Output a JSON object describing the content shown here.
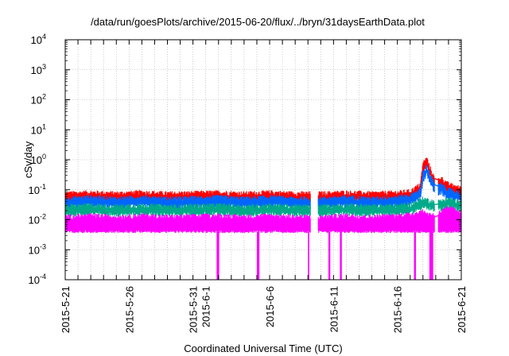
{
  "chart_data": {
    "type": "line",
    "title": "/data/run/goesPlots/archive/2015-06-20/flux/../bryn/31daysEarthData.plot",
    "xlabel": "Coordinated Universal Time (UTC)",
    "ylabel": "cSv/day",
    "yscale": "log",
    "ylim": [
      0.0001,
      10000
    ],
    "xlim": [
      "2015-05-21",
      "2015-06-21"
    ],
    "grid": true,
    "y_ticks": [
      {
        "base": "10",
        "exp": "-4",
        "value": 0.0001
      },
      {
        "base": "10",
        "exp": "-3",
        "value": 0.001
      },
      {
        "base": "10",
        "exp": "-2",
        "value": 0.01
      },
      {
        "base": "10",
        "exp": "-1",
        "value": 0.1
      },
      {
        "base": "10",
        "exp": "0",
        "value": 1
      },
      {
        "base": "10",
        "exp": "1",
        "value": 10
      },
      {
        "base": "10",
        "exp": "2",
        "value": 100
      },
      {
        "base": "10",
        "exp": "3",
        "value": 1000
      },
      {
        "base": "10",
        "exp": "4",
        "value": 10000
      }
    ],
    "x_tick_labels": [
      {
        "label": "2015-5-21",
        "date": "2015-05-21"
      },
      {
        "label": "2015-5-26",
        "date": "2015-05-26"
      },
      {
        "label": "2015-5-31",
        "date": "2015-05-31"
      },
      {
        "label": "2015-6-1",
        "date": "2015-06-01"
      },
      {
        "label": "2015-6-6",
        "date": "2015-06-06"
      },
      {
        "label": "2015-6-11",
        "date": "2015-06-11"
      },
      {
        "label": "2015-6-16",
        "date": "2015-06-16"
      },
      {
        "label": "2015-6-21",
        "date": "2015-06-21"
      }
    ],
    "series": [
      {
        "color": "#ff0000",
        "points": [
          [
            "2015-05-21",
            0.06
          ],
          [
            "2015-05-23",
            0.065
          ],
          [
            "2015-05-25",
            0.06
          ],
          [
            "2015-05-27",
            0.065
          ],
          [
            "2015-05-29",
            0.06
          ],
          [
            "2015-05-31",
            0.062
          ],
          [
            "2015-06-02",
            0.065
          ],
          [
            "2015-06-04",
            0.06
          ],
          [
            "2015-06-06",
            0.065
          ],
          [
            "2015-06-08",
            0.06
          ],
          [
            "2015-06-09",
            0.06
          ],
          [
            "2015-06-10",
            0.06
          ],
          [
            "2015-06-12",
            0.065
          ],
          [
            "2015-06-14",
            0.06
          ],
          [
            "2015-06-16",
            0.065
          ],
          [
            "2015-06-17",
            0.07
          ],
          [
            "2015-06-17.8",
            0.12
          ],
          [
            "2015-06-18",
            0.6
          ],
          [
            "2015-06-18.3",
            0.9
          ],
          [
            "2015-06-18.5",
            0.5
          ],
          [
            "2015-06-19",
            0.15
          ],
          [
            "2015-06-19.4",
            0.2
          ],
          [
            "2015-06-20",
            0.12
          ],
          [
            "2015-06-21",
            0.09
          ]
        ]
      },
      {
        "color": "#0066ff",
        "points": [
          [
            "2015-05-21",
            0.04
          ],
          [
            "2015-05-23",
            0.045
          ],
          [
            "2015-05-25",
            0.04
          ],
          [
            "2015-05-27",
            0.045
          ],
          [
            "2015-05-29",
            0.04
          ],
          [
            "2015-05-31",
            0.042
          ],
          [
            "2015-06-02",
            0.045
          ],
          [
            "2015-06-04",
            0.04
          ],
          [
            "2015-06-06",
            0.045
          ],
          [
            "2015-06-08",
            0.04
          ],
          [
            "2015-06-09",
            0.04
          ],
          [
            "2015-06-10",
            0.04
          ],
          [
            "2015-06-12",
            0.045
          ],
          [
            "2015-06-14",
            0.04
          ],
          [
            "2015-06-16",
            0.045
          ],
          [
            "2015-06-17",
            0.05
          ],
          [
            "2015-06-17.8",
            0.08
          ],
          [
            "2015-06-18",
            0.3
          ],
          [
            "2015-06-18.3",
            0.5
          ],
          [
            "2015-06-18.5",
            0.3
          ],
          [
            "2015-06-19",
            0.1
          ],
          [
            "2015-06-19.4",
            0.12
          ],
          [
            "2015-06-20",
            0.08
          ],
          [
            "2015-06-21",
            0.06
          ]
        ]
      },
      {
        "color": "#00aa88",
        "points": [
          [
            "2015-05-21",
            0.022
          ],
          [
            "2015-05-23",
            0.024
          ],
          [
            "2015-05-25",
            0.022
          ],
          [
            "2015-05-27",
            0.024
          ],
          [
            "2015-05-29",
            0.022
          ],
          [
            "2015-05-31",
            0.023
          ],
          [
            "2015-06-02",
            0.024
          ],
          [
            "2015-06-04",
            0.022
          ],
          [
            "2015-06-06",
            0.024
          ],
          [
            "2015-06-08",
            0.022
          ],
          [
            "2015-06-09",
            0.022
          ],
          [
            "2015-06-10",
            0.022
          ],
          [
            "2015-06-12",
            0.024
          ],
          [
            "2015-06-14",
            0.022
          ],
          [
            "2015-06-16",
            0.024
          ],
          [
            "2015-06-17",
            0.025
          ],
          [
            "2015-06-18",
            0.04
          ],
          [
            "2015-06-18.5",
            0.035
          ],
          [
            "2015-06-19",
            0.03
          ],
          [
            "2015-06-20",
            0.04
          ],
          [
            "2015-06-21",
            0.03
          ]
        ]
      },
      {
        "color": "#ff00ff",
        "points": [
          [
            "2015-05-21",
            0.01
          ],
          [
            "2015-05-23",
            0.011
          ],
          [
            "2015-05-25",
            0.01
          ],
          [
            "2015-05-27",
            0.011
          ],
          [
            "2015-05-29",
            0.01
          ],
          [
            "2015-05-31",
            0.0105
          ],
          [
            "2015-06-02",
            0.011
          ],
          [
            "2015-06-04",
            0.01
          ],
          [
            "2015-06-06",
            0.011
          ],
          [
            "2015-06-08",
            0.01
          ],
          [
            "2015-06-09",
            0.01
          ],
          [
            "2015-06-10",
            0.01
          ],
          [
            "2015-06-12",
            0.011
          ],
          [
            "2015-06-14",
            0.01
          ],
          [
            "2015-06-16",
            0.011
          ],
          [
            "2015-06-17",
            0.012
          ],
          [
            "2015-06-18",
            0.015
          ],
          [
            "2015-06-18.5",
            0.012
          ],
          [
            "2015-06-19",
            0.012
          ],
          [
            "2015-06-20",
            0.02
          ],
          [
            "2015-06-21",
            0.015
          ]
        ]
      }
    ],
    "magenta_floor": 0.004,
    "dropouts": [
      {
        "start": "2015-06-01.85",
        "end": "2015-06-02.05",
        "min": 0.0001
      },
      {
        "start": "2015-06-05.0",
        "end": "2015-06-05.2",
        "min": 0.0001
      },
      {
        "start": "2015-06-09.0",
        "end": "2015-06-09.1",
        "min": 0.0001
      },
      {
        "start": "2015-06-10.6",
        "end": "2015-06-10.75",
        "min": 0.0001
      },
      {
        "start": "2015-06-11.5",
        "end": "2015-06-11.65",
        "min": 0.0001
      },
      {
        "start": "2015-06-17.3",
        "end": "2015-06-17.45",
        "min": 0.0001
      },
      {
        "start": "2015-06-18.5",
        "end": "2015-06-18.8",
        "min": 0.0001
      }
    ],
    "gaps": [
      {
        "start": "2015-06-09.2",
        "end": "2015-06-09.8"
      },
      {
        "start": "2015-06-18.9",
        "end": "2015-06-19.2"
      }
    ]
  }
}
